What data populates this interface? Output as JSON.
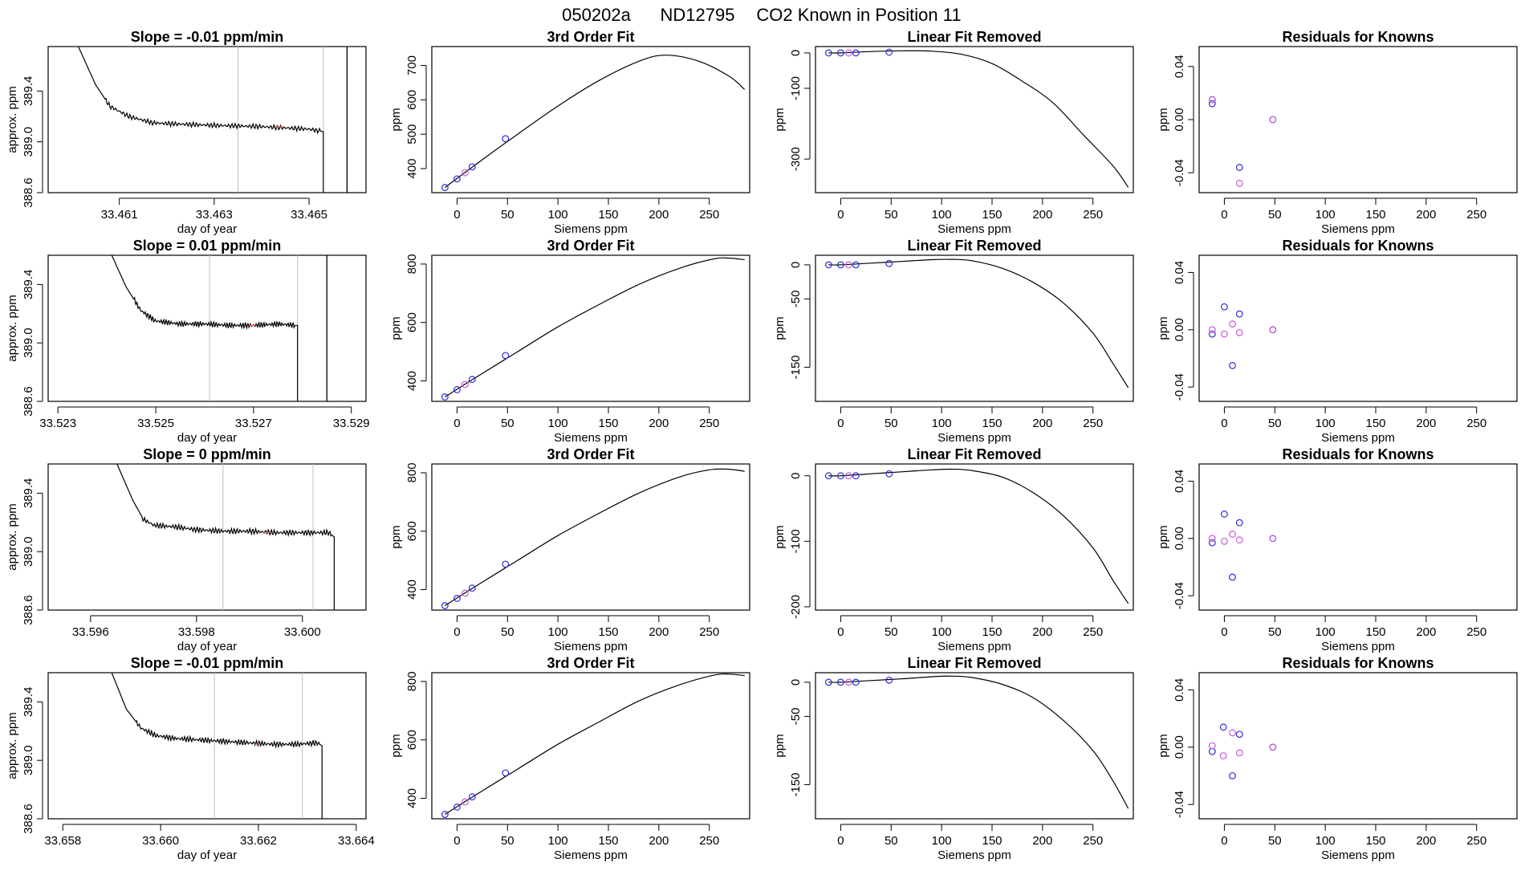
{
  "main_title": {
    "run": "050202a",
    "tank": "ND12795",
    "description": "CO2 Known in Position  11"
  },
  "colors": {
    "trace": "#000000",
    "window_line": "#bfbfbf",
    "highlight": "#ff6464",
    "known_blue": "#2b2bd6",
    "known_violet": "#c85ad8",
    "frame": "#000000"
  },
  "chart_data": [
    {
      "type": "line",
      "title": "Slope =  -0.01  ppm/min",
      "xlabel": "day of year",
      "ylabel": "approx. ppm",
      "xlim": [
        33.4595,
        33.4662
      ],
      "ylim": [
        388.6,
        389.75
      ],
      "xticks": [
        33.461,
        33.463,
        33.465
      ],
      "xtick_labels": [
        "33.461",
        "33.463",
        "33.465"
      ],
      "yticks": [
        388.6,
        389.0,
        389.4
      ],
      "ytick_labels": [
        "388.6",
        "389.0",
        "389.4"
      ],
      "window": [
        33.4635,
        33.4653
      ],
      "drop_x": 33.4653,
      "extra_vline": 33.4658,
      "x": [
        33.4601,
        33.4605,
        33.4608,
        33.4612,
        33.4617,
        33.4622,
        33.463,
        33.464,
        33.465,
        33.4653
      ],
      "values": [
        389.78,
        389.45,
        389.28,
        389.2,
        389.15,
        389.14,
        389.13,
        389.12,
        389.1,
        389.08
      ]
    },
    {
      "type": "line",
      "title": "3rd Order Fit",
      "xlabel": "Siemens ppm",
      "ylabel": "ppm",
      "xlim": [
        -25,
        290
      ],
      "ylim": [
        330,
        755
      ],
      "xticks": [
        0,
        50,
        100,
        150,
        200,
        250
      ],
      "xtick_labels": [
        "0",
        "50",
        "100",
        "150",
        "200",
        "250"
      ],
      "yticks": [
        400,
        500,
        600,
        700
      ],
      "ytick_labels": [
        "400",
        "500",
        "600",
        "700"
      ],
      "x": [
        -12,
        20,
        60,
        100,
        140,
        180,
        207,
        240,
        270,
        285
      ],
      "values": [
        345,
        415,
        500,
        582,
        655,
        712,
        730,
        712,
        668,
        630
      ],
      "knowns_x": [
        -12,
        0,
        8,
        15,
        48
      ],
      "knowns_y": [
        345,
        370,
        388,
        405,
        487
      ]
    },
    {
      "type": "line",
      "title": "Linear Fit Removed",
      "xlabel": "Siemens ppm",
      "ylabel": "ppm",
      "xlim": [
        -25,
        290
      ],
      "ylim": [
        -395,
        18
      ],
      "xticks": [
        0,
        50,
        100,
        150,
        200,
        250
      ],
      "xtick_labels": [
        "0",
        "50",
        "100",
        "150",
        "200",
        "250"
      ],
      "yticks": [
        0,
        -100,
        -300
      ],
      "ytick_labels": [
        "0",
        "-100",
        "-300"
      ],
      "x": [
        -12,
        0,
        30,
        60,
        90,
        120,
        150,
        180,
        210,
        240,
        270,
        285
      ],
      "values": [
        0,
        0,
        4,
        6,
        5,
        -4,
        -30,
        -80,
        -140,
        -230,
        -320,
        -380
      ],
      "knowns_x": [
        -12,
        0,
        8,
        15,
        48
      ],
      "knowns_y": [
        0,
        0,
        0,
        0,
        2
      ]
    },
    {
      "type": "scatter",
      "title": "Residuals for Knowns",
      "xlabel": "Siemens ppm",
      "ylabel": "ppm",
      "xlim": [
        -25,
        290
      ],
      "ylim": [
        -0.055,
        0.055
      ],
      "xticks": [
        0,
        50,
        100,
        150,
        200,
        250
      ],
      "xtick_labels": [
        "0",
        "50",
        "100",
        "150",
        "200",
        "250"
      ],
      "yticks": [
        0.04,
        0.0,
        -0.04
      ],
      "ytick_labels": [
        "0.04",
        "0.00",
        "-0.04"
      ],
      "series": [
        {
          "color": "known_blue",
          "x": [
            -12,
            -12,
            15,
            48
          ],
          "values": [
            0.012,
            0.015,
            -0.036,
            0.0
          ]
        },
        {
          "color": "known_violet",
          "x": [
            -12,
            15,
            48
          ],
          "values": [
            0.015,
            -0.048,
            0.0
          ]
        }
      ]
    },
    {
      "type": "line",
      "title": "Slope =  0.01  ppm/min",
      "xlabel": "day of year",
      "ylabel": "approx. ppm",
      "xlim": [
        33.5228,
        33.5293
      ],
      "ylim": [
        388.6,
        389.6
      ],
      "xticks": [
        33.523,
        33.525,
        33.527,
        33.529
      ],
      "xtick_labels": [
        "33.523",
        "33.525",
        "33.527",
        "33.529"
      ],
      "yticks": [
        388.6,
        389.0,
        389.4
      ],
      "ytick_labels": [
        "388.6",
        "389.0",
        "389.4"
      ],
      "window": [
        33.5261,
        33.5279
      ],
      "drop_x": 33.5279,
      "extra_vline": 33.5285,
      "x": [
        33.5241,
        33.5244,
        33.5247,
        33.525,
        33.5255,
        33.526,
        33.5265,
        33.527,
        33.5275,
        33.5279
      ],
      "values": [
        389.6,
        389.38,
        389.22,
        389.15,
        389.13,
        389.13,
        389.12,
        389.12,
        389.13,
        389.12
      ]
    },
    {
      "type": "line",
      "title": "3rd Order Fit",
      "xlabel": "Siemens ppm",
      "ylabel": "ppm",
      "xlim": [
        -25,
        290
      ],
      "ylim": [
        330,
        830
      ],
      "xticks": [
        0,
        50,
        100,
        150,
        200,
        250
      ],
      "xtick_labels": [
        "0",
        "50",
        "100",
        "150",
        "200",
        "250"
      ],
      "yticks": [
        400,
        600,
        800
      ],
      "ytick_labels": [
        "400",
        "600",
        "800"
      ],
      "x": [
        -12,
        20,
        60,
        100,
        140,
        180,
        220,
        255,
        270,
        285
      ],
      "values": [
        345,
        415,
        500,
        585,
        660,
        730,
        785,
        818,
        820,
        815
      ],
      "knowns_x": [
        -12,
        0,
        8,
        15,
        48
      ],
      "knowns_y": [
        345,
        370,
        388,
        405,
        487
      ]
    },
    {
      "type": "line",
      "title": "Linear Fit Removed",
      "xlabel": "Siemens ppm",
      "ylabel": "ppm",
      "xlim": [
        -25,
        290
      ],
      "ylim": [
        -200,
        14
      ],
      "xticks": [
        0,
        50,
        100,
        150,
        200,
        250
      ],
      "xtick_labels": [
        "0",
        "50",
        "100",
        "150",
        "200",
        "250"
      ],
      "yticks": [
        0,
        -50,
        -150
      ],
      "ytick_labels": [
        "0",
        "-50",
        "-150"
      ],
      "x": [
        -12,
        0,
        30,
        60,
        90,
        110,
        130,
        160,
        190,
        220,
        250,
        270,
        285
      ],
      "values": [
        0,
        0,
        2.5,
        5,
        7.5,
        8,
        6,
        -5,
        -25,
        -55,
        -100,
        -145,
        -180
      ],
      "knowns_x": [
        -12,
        0,
        8,
        15,
        48
      ],
      "knowns_y": [
        0,
        0,
        0,
        0,
        2
      ]
    },
    {
      "type": "scatter",
      "title": "Residuals for Knowns",
      "xlabel": "Siemens ppm",
      "ylabel": "ppm",
      "xlim": [
        -25,
        290
      ],
      "ylim": [
        -0.05,
        0.052
      ],
      "xticks": [
        0,
        50,
        100,
        150,
        200,
        250
      ],
      "xtick_labels": [
        "0",
        "50",
        "100",
        "150",
        "200",
        "250"
      ],
      "yticks": [
        0.04,
        0.0,
        -0.04
      ],
      "ytick_labels": [
        "0.04",
        "0.00",
        "-0.04"
      ],
      "series": [
        {
          "color": "known_blue",
          "x": [
            -12,
            0,
            8,
            15,
            48
          ],
          "values": [
            -0.003,
            0.016,
            -0.025,
            0.011,
            0.0
          ]
        },
        {
          "color": "known_violet",
          "x": [
            -12,
            0,
            8,
            15,
            48
          ],
          "values": [
            0.0,
            -0.003,
            0.004,
            -0.002,
            0.0
          ]
        }
      ]
    },
    {
      "type": "line",
      "title": "Slope =  0  ppm/min",
      "xlabel": "day of year",
      "ylabel": "approx. ppm",
      "xlim": [
        33.5952,
        33.6012
      ],
      "ylim": [
        388.6,
        389.6
      ],
      "xticks": [
        33.596,
        33.598,
        33.6
      ],
      "xtick_labels": [
        "33.596",
        "33.598",
        "33.600"
      ],
      "yticks": [
        388.6,
        389.0,
        389.4
      ],
      "ytick_labels": [
        "388.6",
        "389.0",
        "389.4"
      ],
      "window": [
        33.5985,
        33.6002
      ],
      "drop_x": 33.6006,
      "x": [
        33.5965,
        33.5968,
        33.597,
        33.5972,
        33.5976,
        33.598,
        33.5985,
        33.599,
        33.5995,
        33.6,
        33.6005,
        33.6006
      ],
      "values": [
        389.6,
        389.35,
        389.22,
        389.18,
        389.17,
        389.15,
        389.14,
        389.14,
        389.13,
        389.13,
        389.13,
        389.1
      ]
    },
    {
      "type": "line",
      "title": "3rd Order Fit",
      "xlabel": "Siemens ppm",
      "ylabel": "ppm",
      "xlim": [
        -25,
        290
      ],
      "ylim": [
        330,
        830
      ],
      "xticks": [
        0,
        50,
        100,
        150,
        200,
        250
      ],
      "xtick_labels": [
        "0",
        "50",
        "100",
        "150",
        "200",
        "250"
      ],
      "yticks": [
        400,
        600,
        800
      ],
      "ytick_labels": [
        "400",
        "600",
        "800"
      ],
      "x": [
        -12,
        20,
        60,
        100,
        140,
        180,
        220,
        250,
        270,
        285
      ],
      "values": [
        345,
        415,
        500,
        585,
        660,
        730,
        785,
        810,
        812,
        805
      ],
      "knowns_x": [
        -12,
        0,
        8,
        15,
        48
      ],
      "knowns_y": [
        345,
        370,
        388,
        405,
        487
      ]
    },
    {
      "type": "line",
      "title": "Linear Fit Removed",
      "xlabel": "Siemens ppm",
      "ylabel": "ppm",
      "xlim": [
        -25,
        290
      ],
      "ylim": [
        -205,
        18
      ],
      "xticks": [
        0,
        50,
        100,
        150,
        200,
        250
      ],
      "xtick_labels": [
        "0",
        "50",
        "100",
        "150",
        "200",
        "250"
      ],
      "yticks": [
        0,
        -100,
        -200
      ],
      "ytick_labels": [
        "0",
        "-100",
        "-200"
      ],
      "x": [
        -12,
        0,
        30,
        60,
        90,
        110,
        130,
        160,
        190,
        220,
        250,
        270,
        285
      ],
      "values": [
        0,
        0,
        3,
        6,
        9,
        10,
        8,
        -2,
        -25,
        -60,
        -110,
        -160,
        -195
      ],
      "knowns_x": [
        -12,
        0,
        8,
        15,
        48
      ],
      "knowns_y": [
        0,
        0,
        0,
        0,
        3
      ]
    },
    {
      "type": "scatter",
      "title": "Residuals for Knowns",
      "xlabel": "Siemens ppm",
      "ylabel": "ppm",
      "xlim": [
        -25,
        290
      ],
      "ylim": [
        -0.05,
        0.052
      ],
      "xticks": [
        0,
        50,
        100,
        150,
        200,
        250
      ],
      "xtick_labels": [
        "0",
        "50",
        "100",
        "150",
        "200",
        "250"
      ],
      "yticks": [
        0.04,
        0.0,
        -0.04
      ],
      "ytick_labels": [
        "0.04",
        "0.00",
        "-0.04"
      ],
      "series": [
        {
          "color": "known_blue",
          "x": [
            -12,
            0,
            8,
            15,
            48
          ],
          "values": [
            -0.003,
            0.017,
            -0.027,
            0.011,
            0.0
          ]
        },
        {
          "color": "known_violet",
          "x": [
            -12,
            0,
            8,
            15,
            48
          ],
          "values": [
            0.0,
            -0.002,
            0.003,
            -0.001,
            0.0
          ]
        }
      ]
    },
    {
      "type": "line",
      "title": "Slope =  -0.01  ppm/min",
      "xlabel": "day of year",
      "ylabel": "approx. ppm",
      "xlim": [
        33.6577,
        33.6642
      ],
      "ylim": [
        388.6,
        389.6
      ],
      "xticks": [
        33.658,
        33.66,
        33.662,
        33.664
      ],
      "xtick_labels": [
        "33.658",
        "33.660",
        "33.662",
        "33.664"
      ],
      "yticks": [
        388.6,
        389.0,
        389.4
      ],
      "ytick_labels": [
        "388.6",
        "389.0",
        "389.4"
      ],
      "window": [
        33.6611,
        33.6629
      ],
      "drop_x": 33.6633,
      "x": [
        33.659,
        33.6593,
        33.6596,
        33.6599,
        33.6603,
        33.6608,
        33.6613,
        33.6618,
        33.6623,
        33.6628,
        33.6632,
        33.6633
      ],
      "values": [
        389.6,
        389.35,
        389.22,
        389.17,
        389.15,
        389.14,
        389.13,
        389.12,
        389.11,
        389.11,
        389.12,
        389.1
      ]
    },
    {
      "type": "line",
      "title": "3rd Order Fit",
      "xlabel": "Siemens ppm",
      "ylabel": "ppm",
      "xlim": [
        -25,
        290
      ],
      "ylim": [
        330,
        830
      ],
      "xticks": [
        0,
        50,
        100,
        150,
        200,
        250
      ],
      "xtick_labels": [
        "0",
        "50",
        "100",
        "150",
        "200",
        "250"
      ],
      "yticks": [
        400,
        600,
        800
      ],
      "ytick_labels": [
        "400",
        "600",
        "800"
      ],
      "x": [
        -12,
        20,
        60,
        100,
        140,
        180,
        220,
        255,
        270,
        285
      ],
      "values": [
        345,
        415,
        500,
        585,
        660,
        733,
        788,
        822,
        825,
        820
      ],
      "knowns_x": [
        -12,
        0,
        8,
        15,
        48
      ],
      "knowns_y": [
        345,
        370,
        388,
        405,
        487
      ]
    },
    {
      "type": "line",
      "title": "Linear Fit Removed",
      "xlabel": "Siemens ppm",
      "ylabel": "ppm",
      "xlim": [
        -25,
        290
      ],
      "ylim": [
        -200,
        14
      ],
      "xticks": [
        0,
        50,
        100,
        150,
        200,
        250
      ],
      "xtick_labels": [
        "0",
        "50",
        "100",
        "150",
        "200",
        "250"
      ],
      "yticks": [
        0,
        -50,
        -150
      ],
      "ytick_labels": [
        "0",
        "-50",
        "-150"
      ],
      "x": [
        -12,
        0,
        30,
        60,
        90,
        110,
        130,
        160,
        190,
        220,
        250,
        270,
        285
      ],
      "values": [
        0,
        0,
        2.5,
        5,
        8,
        9,
        7,
        -3,
        -22,
        -55,
        -100,
        -145,
        -185
      ],
      "knowns_x": [
        -12,
        0,
        8,
        15,
        48
      ],
      "knowns_y": [
        0,
        0,
        0,
        0,
        3
      ]
    },
    {
      "type": "scatter",
      "title": "Residuals for Knowns",
      "xlabel": "Siemens ppm",
      "ylabel": "ppm",
      "xlim": [
        -25,
        290
      ],
      "ylim": [
        -0.05,
        0.052
      ],
      "xticks": [
        0,
        50,
        100,
        150,
        200,
        250
      ],
      "xtick_labels": [
        "0",
        "50",
        "100",
        "150",
        "200",
        "250"
      ],
      "yticks": [
        0.04,
        0.0,
        -0.04
      ],
      "ytick_labels": [
        "0.04",
        "0.00",
        "-0.04"
      ],
      "series": [
        {
          "color": "known_blue",
          "x": [
            -12,
            -1,
            8,
            15,
            48
          ],
          "values": [
            -0.003,
            0.014,
            -0.02,
            0.009,
            0.0
          ]
        },
        {
          "color": "known_violet",
          "x": [
            -12,
            -1,
            8,
            15,
            48
          ],
          "values": [
            0.001,
            -0.006,
            0.01,
            -0.004,
            0.0
          ]
        }
      ]
    }
  ]
}
